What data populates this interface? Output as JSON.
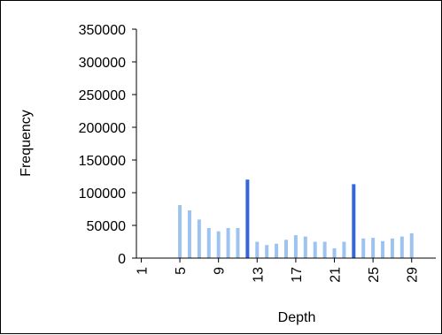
{
  "chart_data": {
    "type": "bar",
    "title": "",
    "xlabel": "Depth",
    "ylabel": "Frequency",
    "ylim": [
      0,
      350000
    ],
    "yticks": [
      0,
      50000,
      100000,
      150000,
      200000,
      250000,
      300000,
      350000
    ],
    "xlim": [
      1,
      31
    ],
    "xticks": [
      1,
      5,
      9,
      13,
      17,
      21,
      25,
      29
    ],
    "grid": false,
    "legend": "none",
    "colors": {
      "normal": "#9DC3F0",
      "highlight": "#3366DD",
      "axis": "#000000"
    },
    "x": [
      5,
      6,
      7,
      8,
      9,
      10,
      11,
      12,
      13,
      14,
      15,
      16,
      17,
      18,
      19,
      20,
      21,
      22,
      23,
      24,
      25,
      26,
      27,
      28,
      29
    ],
    "values": [
      81000,
      73000,
      59000,
      46000,
      41000,
      46000,
      46000,
      120000,
      25000,
      20000,
      22000,
      28000,
      35000,
      33000,
      25000,
      25000,
      15000,
      25000,
      113000,
      30000,
      31000,
      26000,
      30000,
      33000,
      38000
    ],
    "highlighted": [
      12,
      23
    ]
  }
}
